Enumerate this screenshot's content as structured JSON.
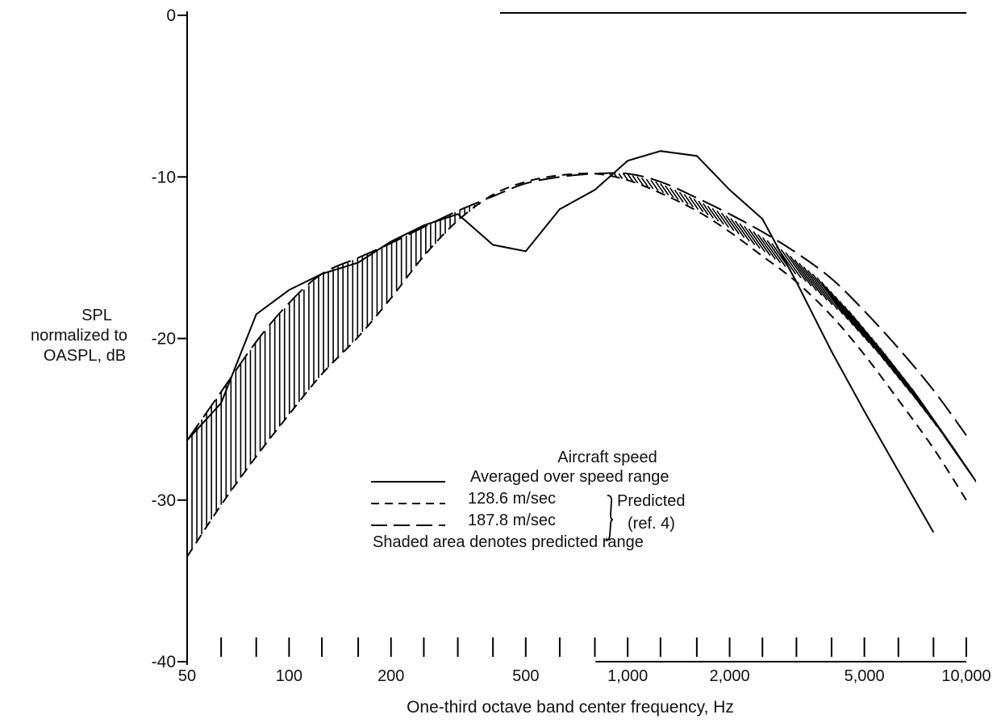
{
  "chart_data": {
    "type": "line",
    "xlabel": "One-third octave band center frequency, Hz",
    "ylabel_lines": [
      "SPL",
      "normalized to",
      "OASPL, dB"
    ],
    "x_scale": "log",
    "xlim": [
      50,
      10000
    ],
    "ylim": [
      -40,
      0
    ],
    "y_ticks": [
      0,
      -10,
      -20,
      -30,
      -40
    ],
    "y_tick_labels": [
      "0",
      "-10",
      "-20",
      "-30",
      "-40"
    ],
    "x_tick_labels": [
      {
        "value": 50,
        "label": "50"
      },
      {
        "value": 100,
        "label": "100"
      },
      {
        "value": 200,
        "label": "200"
      },
      {
        "value": 500,
        "label": "500"
      },
      {
        "value": 1000,
        "label": "1,000"
      },
      {
        "value": 2000,
        "label": "2,000"
      },
      {
        "value": 5000,
        "label": "5,000"
      },
      {
        "value": 10000,
        "label": "10,000"
      }
    ],
    "x_minor_ticks": [
      50,
      63,
      80,
      100,
      125,
      160,
      200,
      250,
      315,
      400,
      500,
      630,
      800,
      1000,
      1250,
      1600,
      2000,
      2500,
      3150,
      4000,
      5000,
      6300,
      8000,
      10000
    ],
    "series": [
      {
        "style": "solid",
        "x": [
          50,
          63,
          80,
          100,
          125,
          160,
          200,
          250,
          315,
          400,
          500,
          630,
          800,
          1000,
          1250,
          1600,
          2000,
          2500,
          3150,
          4000,
          5000,
          6300,
          8000
        ],
        "y": [
          -26.3,
          -24,
          -18.5,
          -17,
          -16,
          -15.3,
          -14,
          -13,
          -12.3,
          -14.2,
          -14.6,
          -12,
          -10.8,
          -9,
          -8.4,
          -8.7,
          -10.8,
          -12.6,
          -16.5,
          -20.8,
          -24.5,
          -28.2,
          -32
        ]
      },
      {
        "style": "short-dash",
        "x": [
          50,
          63,
          80,
          100,
          125,
          160,
          200,
          250,
          315,
          400,
          500,
          630,
          800,
          1000,
          1250,
          1600,
          2000,
          2500,
          3150,
          4000,
          5000,
          6300,
          8000,
          10000
        ],
        "y": [
          -33.5,
          -30.3,
          -27.3,
          -24.7,
          -22.2,
          -19.9,
          -17.5,
          -14.9,
          -12.7,
          -11.1,
          -10.3,
          -9.9,
          -9.8,
          -10.2,
          -11,
          -12.1,
          -13.4,
          -14.9,
          -16.5,
          -18.6,
          -21,
          -23.8,
          -26.8,
          -30
        ]
      },
      {
        "style": "long-dash",
        "x": [
          50,
          63,
          80,
          100,
          125,
          160,
          200,
          250,
          315,
          400,
          500,
          630,
          800,
          1000,
          1250,
          1600,
          2000,
          2500,
          3150,
          4000,
          5000,
          6300,
          8000,
          10000
        ],
        "y": [
          -26.3,
          -23.3,
          -20.2,
          -17.8,
          -16,
          -15,
          -14.1,
          -13.1,
          -12.1,
          -11.2,
          -10.4,
          -10,
          -9.8,
          -9.8,
          -10.3,
          -11.3,
          -12.3,
          -13.4,
          -14.7,
          -16.3,
          -18.3,
          -20.6,
          -23.2,
          -26
        ]
      }
    ],
    "top_line": {
      "x": [
        630,
        10000
      ],
      "y": [
        0,
        0
      ]
    },
    "legend": {
      "placement": "center",
      "title": "Aircraft speed",
      "entries": [
        {
          "style": "solid",
          "label": "Averaged over speed range"
        },
        {
          "style": "short-dash",
          "label": "128.6 m/sec"
        },
        {
          "style": "long-dash",
          "label": "187.8 m/sec"
        }
      ],
      "group_label_1": "Predicted",
      "group_label_2": "(ref. 4)",
      "note": "Shaded area denotes predicted range"
    }
  }
}
